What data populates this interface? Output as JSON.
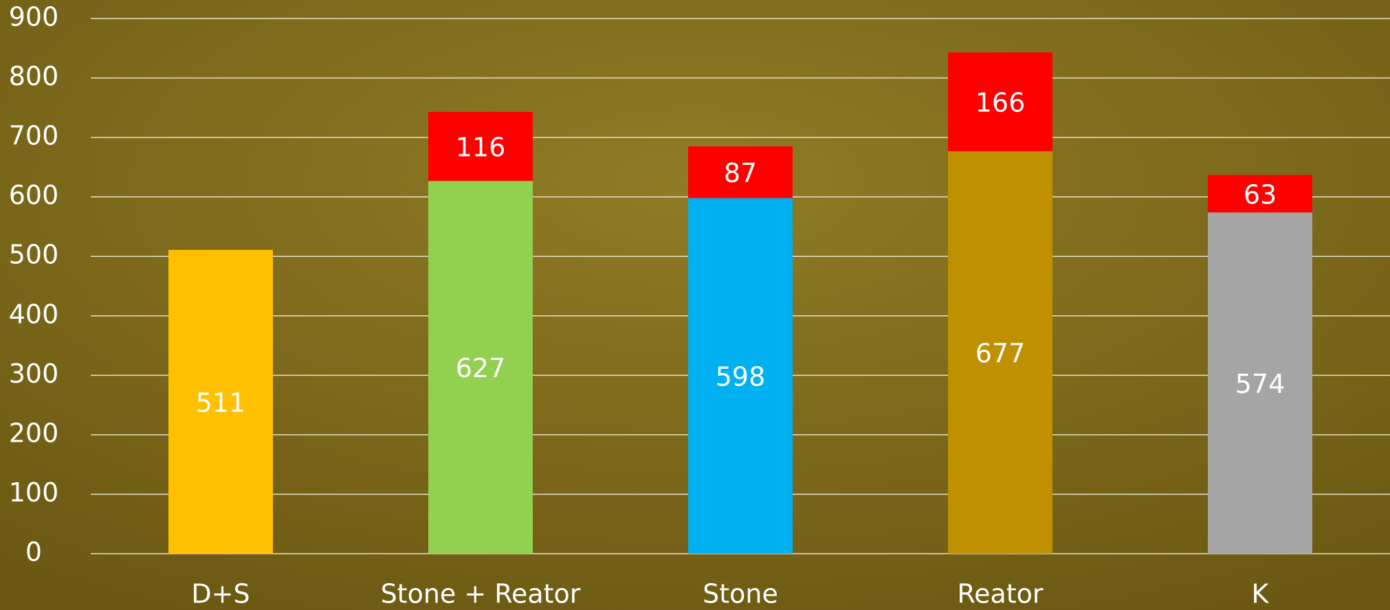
{
  "chart_data": {
    "type": "stacked_bar",
    "categories": [
      "D+S",
      "Stone + Reator",
      "Stone",
      "Reator",
      "K"
    ],
    "series": [
      {
        "colors": [
          "#ffc000",
          "#92d050",
          "#00b0f0",
          "#bf9000",
          "#a5a5a5"
        ],
        "values": [
          511,
          627,
          598,
          677,
          574
        ]
      },
      {
        "color": "#ff0000",
        "values": [
          null,
          116,
          87,
          166,
          63
        ]
      }
    ],
    "ylim": [
      0,
      900
    ],
    "yticks": [
      0,
      100,
      200,
      300,
      400,
      500,
      600,
      700,
      800,
      900
    ],
    "grid": true
  }
}
